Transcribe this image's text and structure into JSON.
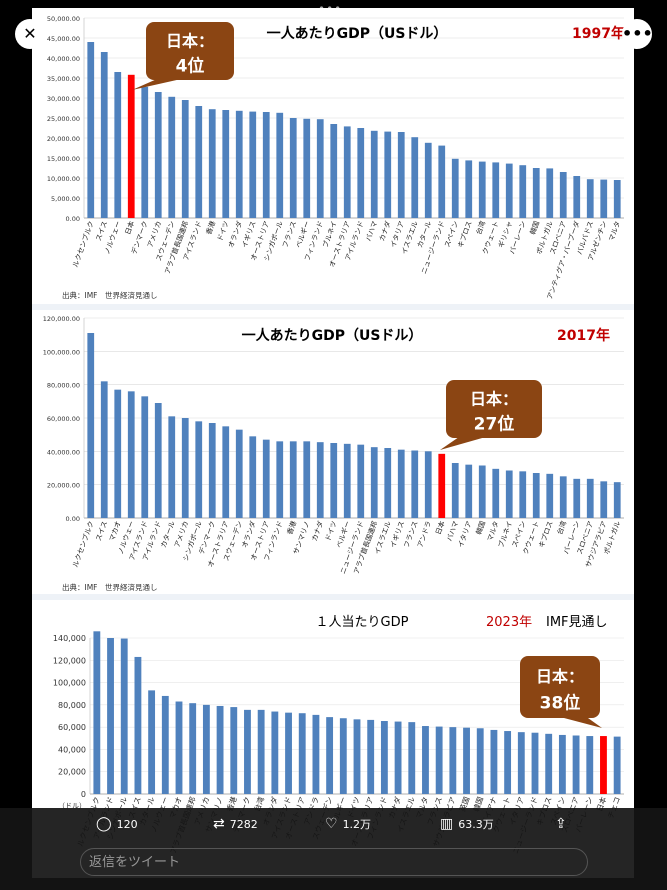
{
  "viewer": {
    "close_icon": "✕",
    "more_icon": "•••",
    "top_indicator": "•••"
  },
  "actions": {
    "replies": "120",
    "retweets": "7282",
    "likes": "1.2万",
    "views": "63.3万"
  },
  "reply_placeholder": "返信をツイート",
  "colors": {
    "bar": "#4f81bd",
    "japan": "#ff0000",
    "callout": "#8b4513",
    "red_title": "#c00000"
  },
  "chart_data": [
    {
      "type": "bar",
      "title": "一人あたりGDP（USドル）",
      "year": "1997年",
      "source": "出典：IMF　世界経済見通し",
      "callout": {
        "line1": "日本：",
        "line2": "4位"
      },
      "ylim": [
        0,
        50000
      ],
      "yticks": [
        "0.00",
        "5,000.00",
        "10,000.00",
        "15,000.00",
        "20,000.00",
        "25,000.00",
        "30,000.00",
        "35,000.00",
        "40,000.00",
        "45,000.00",
        "50,000.00"
      ],
      "highlight": "日本",
      "categories": [
        "ルクセンブルク",
        "スイス",
        "ノルウェー",
        "日本",
        "デンマーク",
        "アメリカ",
        "スウェーデン",
        "アラブ首長国連邦",
        "アイスランド",
        "香港",
        "ドイツ",
        "オランダ",
        "イギリス",
        "オーストリア",
        "シンガポール",
        "フランス",
        "ベルギー",
        "フィンランド",
        "ブルネイ",
        "オーストラリア",
        "アイルランド",
        "バハマ",
        "カナダ",
        "イタリア",
        "イスラエル",
        "カタール",
        "ニュージーランド",
        "スペイン",
        "キプロス",
        "台湾",
        "クウェート",
        "ギリシャ",
        "バーレーン",
        "韓国",
        "ポルトガル",
        "スロベニア",
        "アンティグア・バーブーダ",
        "バルバドス",
        "アルゼンチン",
        "マルタ"
      ],
      "values": [
        44000,
        41500,
        36500,
        35800,
        32800,
        31500,
        30300,
        29500,
        28000,
        27200,
        27000,
        26800,
        26600,
        26500,
        26300,
        25000,
        24800,
        24700,
        23500,
        22900,
        22500,
        21800,
        21600,
        21500,
        20200,
        18800,
        18100,
        14800,
        14400,
        14100,
        13900,
        13600,
        13200,
        12500,
        12400,
        11500,
        10500,
        9700,
        9600,
        9500
      ]
    },
    {
      "type": "bar",
      "title": "一人あたりGDP（USドル）",
      "year": "2017年",
      "source": "出典：IMF　世界経済見通し",
      "callout": {
        "line1": "日本：",
        "line2": "27位"
      },
      "ylim": [
        0,
        120000
      ],
      "yticks": [
        "0.00",
        "20,000.00",
        "40,000.00",
        "60,000.00",
        "80,000.00",
        "100,000.00",
        "120,000.00"
      ],
      "highlight": "日本",
      "categories": [
        "ルクセンブルク",
        "スイス",
        "マカオ",
        "ノルウェー",
        "アイスランド",
        "アイルランド",
        "カタール",
        "アメリカ",
        "シンガポール",
        "デンマーク",
        "オーストラリア",
        "スウェーデン",
        "オランダ",
        "オーストリア",
        "フィンランド",
        "香港",
        "サンマリノ",
        "カナダ",
        "ドイツ",
        "ベルギー",
        "ニュージーランド",
        "アラブ首長国連邦",
        "イスラエル",
        "イギリス",
        "フランス",
        "アンドラ",
        "日本",
        "バハマ",
        "イタリア",
        "韓国",
        "マルタ",
        "ブルネイ",
        "スペイン",
        "クウェート",
        "キプロス",
        "台湾",
        "バーレーン",
        "スロベニア",
        "サウジアラビア",
        "ポルトガル"
      ],
      "values": [
        111000,
        82000,
        77000,
        76000,
        73000,
        69000,
        61000,
        60000,
        58000,
        57000,
        55000,
        53000,
        49000,
        47000,
        46000,
        46000,
        46000,
        45500,
        45000,
        44500,
        44000,
        42500,
        42000,
        41000,
        40500,
        40000,
        38500,
        33000,
        32000,
        31500,
        29500,
        28500,
        28000,
        27000,
        26500,
        25000,
        23500,
        23500,
        22000,
        21500
      ]
    },
    {
      "type": "bar",
      "title": "１人当たりGDP",
      "year": "2023年",
      "subtitle": "IMF見通し",
      "callout": {
        "line1": "日本：",
        "line2": "38位"
      },
      "ylabel": "（ドル）",
      "ylim": [
        0,
        140000
      ],
      "yticks": [
        "0",
        "20,000",
        "40,000",
        "60,000",
        "80,000",
        "100,000",
        "120,000",
        "140,000"
      ],
      "highlight": "日本",
      "categories": [
        "ルクセンブルク",
        "アイルランド",
        "シンガポール",
        "スイス",
        "カタール",
        "ノルウェー",
        "マカオ",
        "アラブ首長国連邦",
        "アメリカ",
        "サンマリノ",
        "香港",
        "デンマーク",
        "台湾",
        "オランダ",
        "アイスランド",
        "オーストリア",
        "アンドラ",
        "スウェーデン",
        "ベルギー",
        "ドイツ",
        "オーストラリア",
        "フィンランド",
        "カナダ",
        "イスラエル",
        "マルタ",
        "フランス",
        "サウジアラビア",
        "英国",
        "韓国",
        "ガイアナ",
        "クウェート",
        "イタリア",
        "ニュージーランド",
        "キプロス",
        "スペイン",
        "スロベニア",
        "バーレーン",
        "日本",
        "チェコ"
      ],
      "values": [
        146000,
        140000,
        139500,
        123000,
        93000,
        88000,
        83000,
        81500,
        80000,
        79000,
        78000,
        75500,
        75500,
        74000,
        73000,
        72500,
        71000,
        69000,
        68000,
        67000,
        66500,
        65500,
        65000,
        64500,
        61000,
        60500,
        60000,
        59500,
        59000,
        57500,
        56500,
        55500,
        55000,
        54000,
        53000,
        52500,
        52000,
        52000,
        51500
      ]
    }
  ]
}
